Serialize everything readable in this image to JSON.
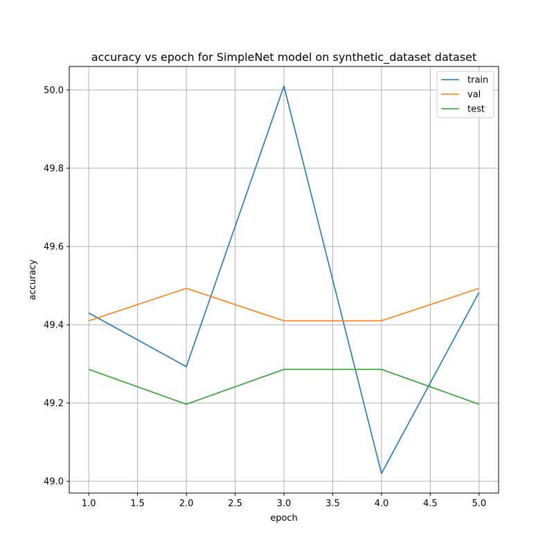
{
  "chart_data": {
    "type": "line",
    "title": "accuracy vs epoch for SimpleNet model on synthetic_dataset dataset",
    "xlabel": "epoch",
    "ylabel": "accuracy",
    "x": [
      1,
      2,
      3,
      4,
      5
    ],
    "xlim": [
      0.8,
      5.2
    ],
    "ylim": [
      48.97,
      50.06
    ],
    "xticks": [
      1.0,
      1.5,
      2.0,
      2.5,
      3.0,
      3.5,
      4.0,
      4.5,
      5.0
    ],
    "xtick_labels": [
      "1.0",
      "1.5",
      "2.0",
      "2.5",
      "3.0",
      "3.5",
      "4.0",
      "4.5",
      "5.0"
    ],
    "yticks": [
      49.0,
      49.2,
      49.4,
      49.6,
      49.8,
      50.0
    ],
    "ytick_labels": [
      "49.0",
      "49.2",
      "49.4",
      "49.6",
      "49.8",
      "50.0"
    ],
    "grid": true,
    "legend_position": "top-right",
    "series": [
      {
        "name": "train",
        "color": "#1f77b4",
        "values": [
          49.43,
          49.293,
          50.01,
          49.02,
          49.483
        ]
      },
      {
        "name": "val",
        "color": "#ff7f0e",
        "values": [
          49.41,
          49.493,
          49.41,
          49.41,
          49.493
        ]
      },
      {
        "name": "test",
        "color": "#2ca02c",
        "values": [
          49.286,
          49.197,
          49.286,
          49.286,
          49.197
        ]
      }
    ]
  }
}
